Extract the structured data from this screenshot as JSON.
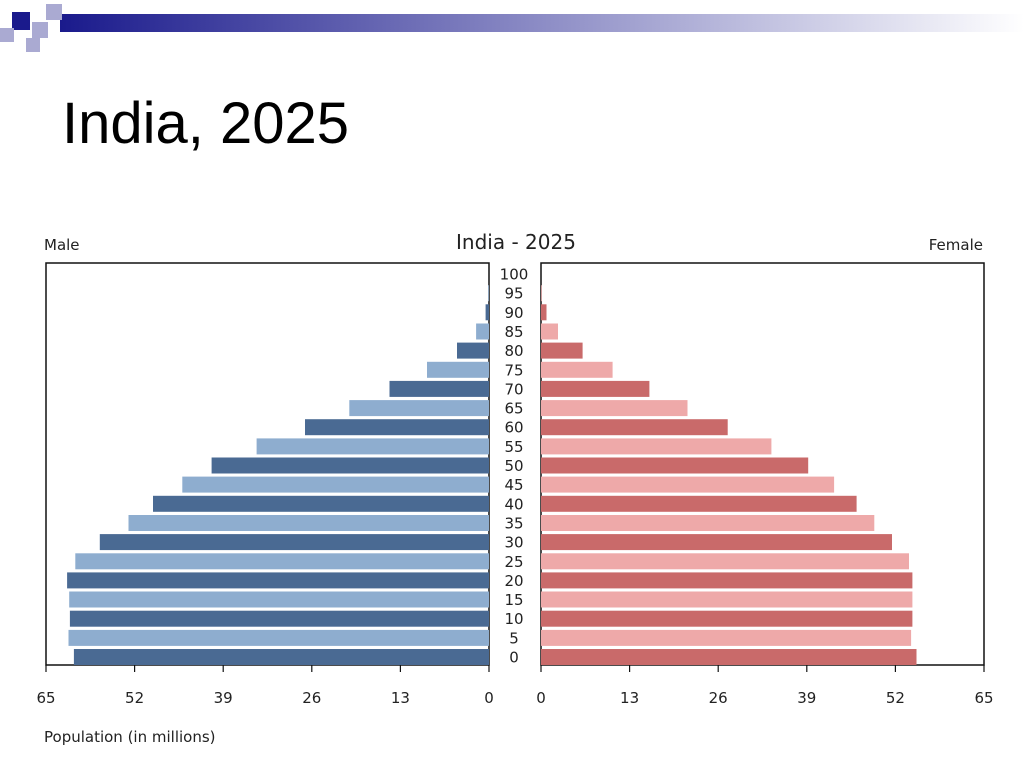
{
  "slide": {
    "title": "India, 2025"
  },
  "colors": {
    "male_dark": "#4a6a93",
    "male_light": "#8eadcf",
    "female_dark": "#c96a6a",
    "female_light": "#eea9a9",
    "band_dark": "#1a1a8c",
    "band_light": "#aaaad2"
  },
  "chart_data": {
    "type": "bar",
    "orientation": "horizontal",
    "layout": "population-pyramid",
    "title": "India - 2025",
    "left_label": "Male",
    "right_label": "Female",
    "xlabel": "Population (in millions)",
    "xlim": [
      0,
      65
    ],
    "x_ticks": [
      65,
      52,
      39,
      26,
      13,
      0
    ],
    "x_ticks_right": [
      0,
      13,
      26,
      39,
      52,
      65
    ],
    "categories": [
      "0",
      "5",
      "10",
      "15",
      "20",
      "25",
      "30",
      "35",
      "40",
      "45",
      "50",
      "55",
      "60",
      "65",
      "70",
      "75",
      "80",
      "85",
      "90",
      "95",
      "100"
    ],
    "series": [
      {
        "name": "Male",
        "values": [
          60.9,
          61.7,
          61.5,
          61.6,
          61.9,
          60.7,
          57.1,
          52.9,
          49.3,
          45.0,
          40.7,
          34.1,
          27.0,
          20.5,
          14.6,
          9.1,
          4.7,
          1.9,
          0.5,
          0.1,
          0.0
        ]
      },
      {
        "name": "Female",
        "values": [
          55.1,
          54.3,
          54.5,
          54.5,
          54.5,
          54.0,
          51.5,
          48.9,
          46.3,
          43.0,
          39.2,
          33.8,
          27.4,
          21.5,
          15.9,
          10.5,
          6.1,
          2.5,
          0.8,
          0.1,
          0.0
        ]
      }
    ],
    "grid": false,
    "legend": "none"
  }
}
